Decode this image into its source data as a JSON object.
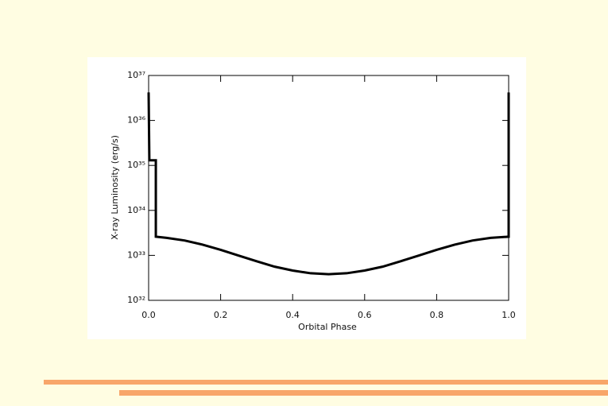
{
  "chart_data": {
    "type": "line",
    "xlabel": "Orbital Phase",
    "ylabel": "X-ray Luminosity (erg/s)",
    "x": [
      0,
      0.002,
      0.02,
      0.02,
      0.05,
      0.1,
      0.15,
      0.2,
      0.25,
      0.3,
      0.35,
      0.4,
      0.45,
      0.5,
      0.55,
      0.6,
      0.65,
      0.7,
      0.75,
      0.8,
      0.85,
      0.9,
      0.95,
      1.0,
      1.0
    ],
    "series": [
      {
        "color": "#000000",
        "values": [
          4.2e+36,
          1.3e+35,
          1.3e+35,
          2.6e+33,
          2.45e+33,
          2.14e+33,
          1.73e+33,
          1.33e+33,
          9.9e+32,
          7.4e+32,
          5.6e+32,
          4.6e+32,
          4e+32,
          3.8e+32,
          4e+32,
          4.6e+32,
          5.6e+32,
          7.4e+32,
          9.9e+32,
          1.33e+33,
          1.73e+33,
          2.14e+33,
          2.45e+33,
          2.6e+33,
          4.2e+36
        ]
      }
    ],
    "xlim": [
      0,
      1.0
    ],
    "ylim": [
      1e+32,
      1e+37
    ],
    "ylog": true,
    "xticks": [
      {
        "value": 0,
        "label": "0.0"
      },
      0.2,
      0.4,
      0.6,
      0.8,
      {
        "value": 1.0,
        "label": "1.0"
      }
    ],
    "yticks": [
      {
        "value": 1e+32,
        "label": "10³²"
      },
      {
        "value": 1e+33,
        "label": "10³³"
      },
      {
        "value": 1e+34,
        "label": "10³⁴"
      },
      {
        "value": 1e+35,
        "label": "10³⁵"
      },
      {
        "value": 1e+36,
        "label": "10³⁶"
      },
      {
        "value": 1e+37,
        "label": "10³⁷"
      }
    ]
  }
}
